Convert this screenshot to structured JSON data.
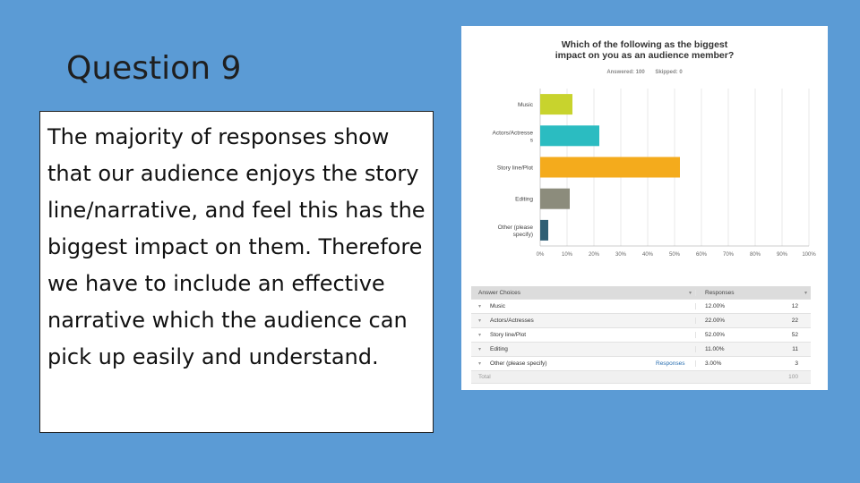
{
  "slide": {
    "title": "Question 9",
    "body": "The majority of responses show that our audience enjoys the story line/narrative, and feel this has the biggest impact on them. Therefore we have to include an effective narrative which the audience can pick up easily and understand."
  },
  "chart_data": {
    "type": "bar",
    "orientation": "horizontal",
    "title_line1": "Which of the following as the biggest",
    "title_line2": "impact on you as an audience member?",
    "answered": "Answered: 100",
    "skipped": "Skipped: 0",
    "categories": [
      "Music",
      "Actors/Actresses",
      "Story line/Plot",
      "Editing",
      "Other (please specify)"
    ],
    "category_label_lines": [
      [
        "Music"
      ],
      [
        "Actors/Actresse",
        "s"
      ],
      [
        "Story line/Plot"
      ],
      [
        "Editing"
      ],
      [
        "Other (please",
        "specify)"
      ]
    ],
    "values": [
      12,
      22,
      52,
      11,
      3
    ],
    "colors": [
      "#c8d32d",
      "#2bbcc1",
      "#f4ab1c",
      "#8c8c7c",
      "#2f5f74"
    ],
    "x_ticks": [
      "0%",
      "10%",
      "20%",
      "30%",
      "40%",
      "50%",
      "60%",
      "70%",
      "80%",
      "90%",
      "100%"
    ],
    "xlim": [
      0,
      100
    ],
    "grid": true
  },
  "table": {
    "header": {
      "choice": "Answer Choices",
      "responses": "Responses"
    },
    "rows": [
      {
        "choice": "Music",
        "pct": "12.00%",
        "n": "12",
        "link": ""
      },
      {
        "choice": "Actors/Actresses",
        "pct": "22.00%",
        "n": "22",
        "link": ""
      },
      {
        "choice": "Story line/Plot",
        "pct": "52.00%",
        "n": "52",
        "link": ""
      },
      {
        "choice": "Editing",
        "pct": "11.00%",
        "n": "11",
        "link": ""
      },
      {
        "choice": "Other (please specify)",
        "pct": "3.00%",
        "n": "3",
        "link": "Responses"
      }
    ],
    "footer": {
      "label": "Total",
      "total": "100"
    }
  }
}
